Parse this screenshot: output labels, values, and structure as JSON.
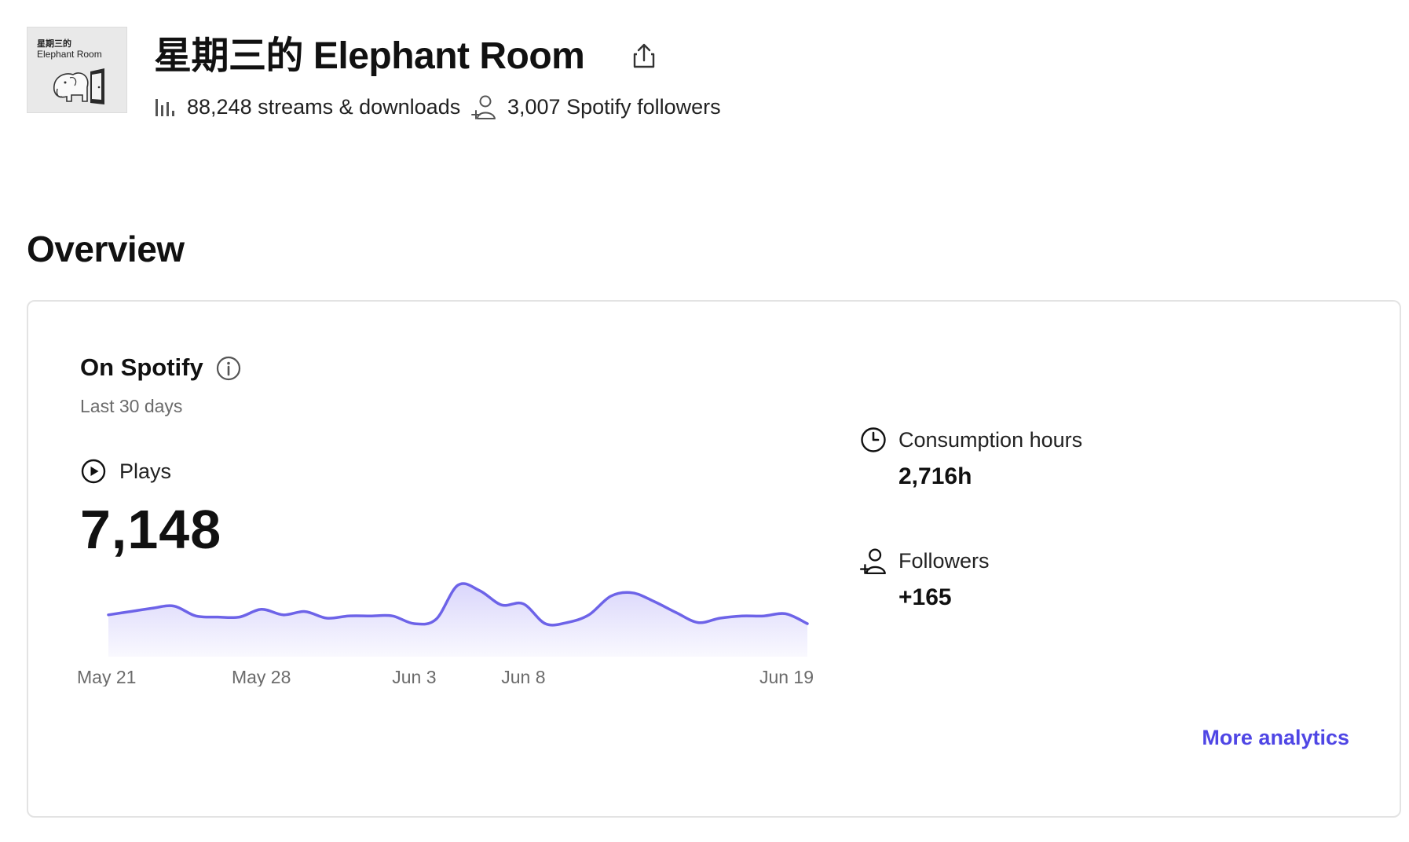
{
  "podcast": {
    "cover_line1": "星期三的",
    "cover_line2": "Elephant Room",
    "title": "星期三的 Elephant Room",
    "streams_text": "88,248 streams & downloads",
    "followers_text": "3,007 Spotify followers"
  },
  "overview": {
    "heading": "Overview",
    "card_title": "On Spotify",
    "period": "Last 30 days",
    "plays_label": "Plays",
    "plays_value": "7,148",
    "consumption_label": "Consumption hours",
    "consumption_value": "2,716h",
    "followers_label": "Followers",
    "followers_value": "+165",
    "more_link": "More analytics"
  },
  "colors": {
    "accent": "#4f46e5",
    "line": "#6d63e8",
    "area_top": "#d8d4fb"
  },
  "chart_data": {
    "type": "area",
    "series": [
      {
        "values": [
          38,
          41,
          44,
          46,
          37,
          36,
          36,
          43,
          38,
          41,
          35,
          37,
          37,
          37,
          30,
          34,
          65,
          60,
          47,
          48,
          30,
          31,
          38,
          55,
          58,
          50,
          40,
          31,
          35,
          37,
          37,
          39,
          30
        ]
      }
    ],
    "x_tick_labels": [
      "May 21",
      "May 28",
      "Jun 3",
      "Jun 8",
      "Jun 19"
    ],
    "x_tick_index": [
      0,
      7,
      14,
      19,
      32
    ],
    "ylim": [
      0,
      80
    ],
    "grid": false
  }
}
